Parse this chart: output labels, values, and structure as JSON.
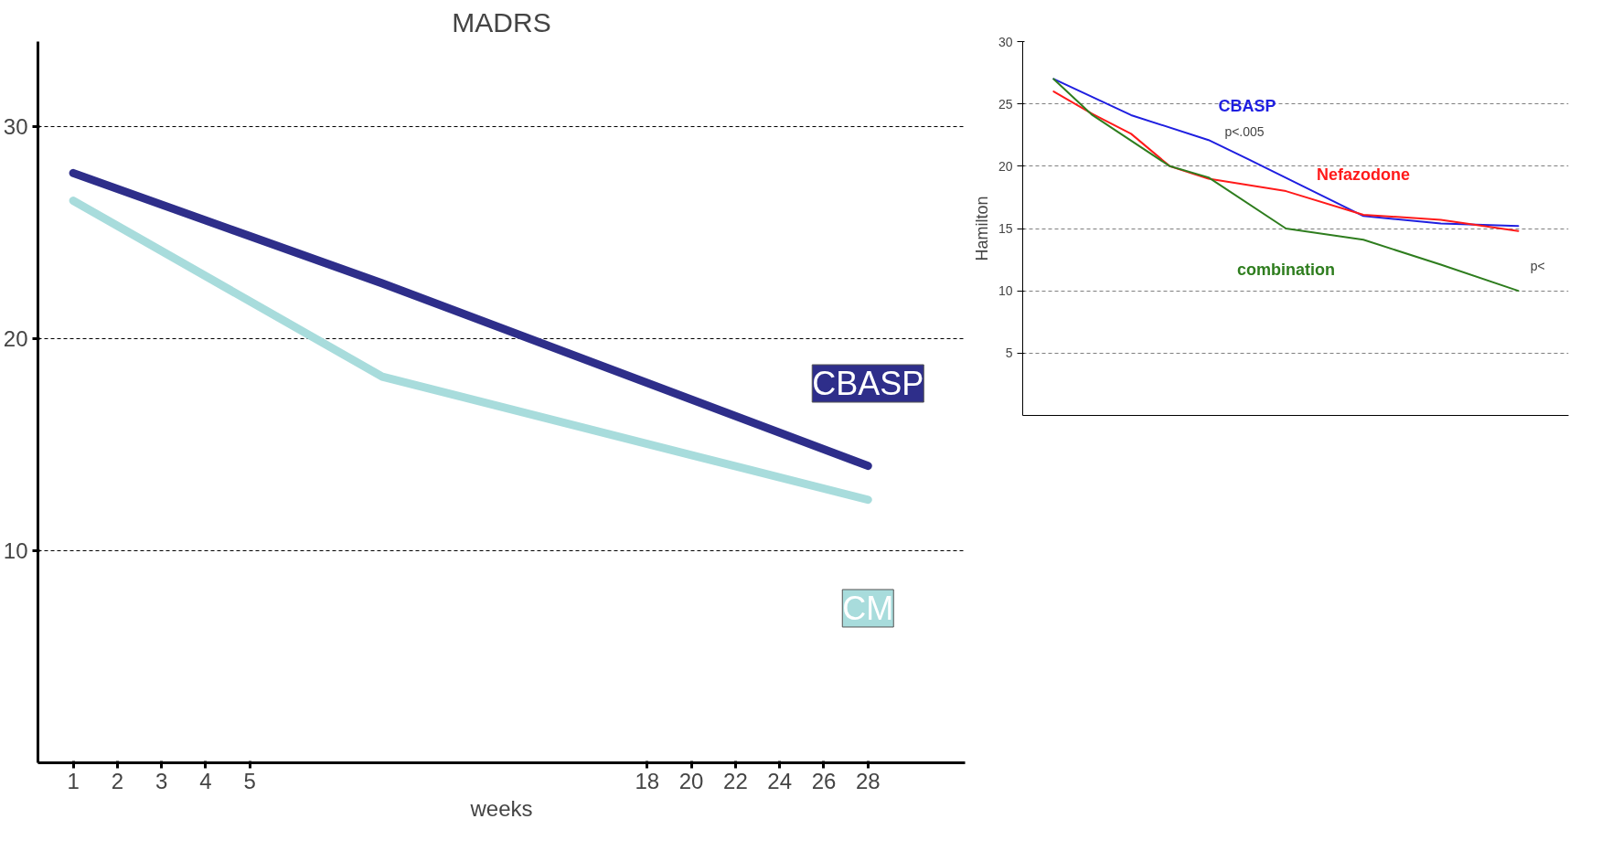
{
  "chart_data": [
    {
      "type": "line",
      "title": "MADRS",
      "xlabel": "weeks",
      "categories": [
        "1",
        "2",
        "3",
        "4",
        "5",
        null,
        null,
        null,
        null,
        null,
        null,
        null,
        null,
        "18",
        "20",
        "22",
        "24",
        "26",
        "28"
      ],
      "ylim": [
        0,
        34
      ],
      "yticks": [
        10,
        20,
        30
      ],
      "grid": "y",
      "series": [
        {
          "name": "CBASP",
          "color": "#2e2e8a",
          "values": [
            27.8,
            null,
            null,
            null,
            null,
            null,
            null,
            22.6,
            null,
            null,
            null,
            null,
            null,
            null,
            null,
            null,
            null,
            null,
            14.0
          ]
        },
        {
          "name": "CM",
          "color": "#a8dcdc",
          "values": [
            26.5,
            null,
            null,
            null,
            null,
            null,
            null,
            18.2,
            null,
            null,
            null,
            null,
            null,
            null,
            null,
            null,
            null,
            null,
            12.4
          ]
        }
      ]
    },
    {
      "type": "line",
      "ylabel": "Hamilton",
      "categories": [
        null,
        null,
        null,
        null,
        null,
        null,
        null,
        null,
        null,
        null,
        null,
        null,
        null
      ],
      "ylim": [
        0,
        30
      ],
      "yticks": [
        5,
        10,
        15,
        20,
        25,
        30
      ],
      "grid": "y",
      "annotations": [
        "p<.005",
        "p<"
      ],
      "series": [
        {
          "name": "CBASP",
          "color": "#1f1fe0",
          "values": [
            27,
            null,
            24.1,
            null,
            22.1,
            20.6,
            null,
            null,
            16,
            null,
            15.4,
            null,
            15.2
          ]
        },
        {
          "name": "Nefazodone",
          "color": "#ff1a1a",
          "values": [
            26,
            24.2,
            22.6,
            20,
            19,
            null,
            18,
            null,
            16.1,
            null,
            15.7,
            null,
            14.8
          ]
        },
        {
          "name": "combination",
          "color": "#2e7d1e",
          "values": [
            27,
            24.1,
            null,
            20,
            19.1,
            null,
            15,
            null,
            14.1,
            null,
            12.1,
            null,
            10
          ]
        }
      ]
    }
  ]
}
